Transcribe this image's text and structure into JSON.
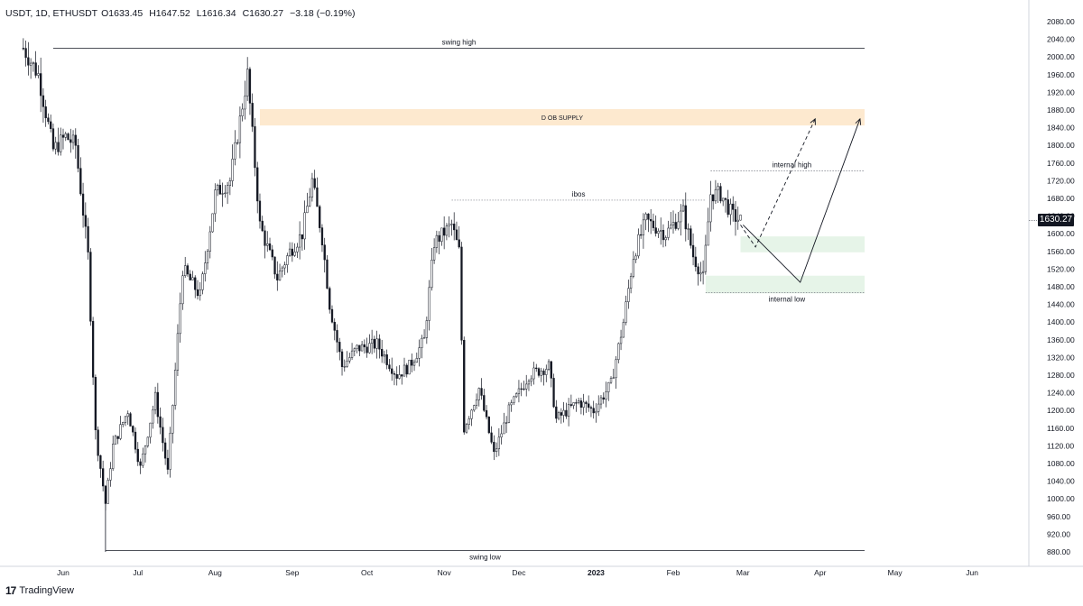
{
  "header": {
    "symbol": "USDT, 1D, ETHUSDT",
    "open": "O1633.45",
    "high": "H1647.52",
    "low": "L1616.34",
    "close": "C1630.27",
    "change": "−3.18 (−0.19%)"
  },
  "branding": {
    "name": "TradingView",
    "mark": "17"
  },
  "current_price": "1630.27",
  "colors": {
    "candle": "#131722",
    "supply_zone": "#fde9cf",
    "demand_zone": "#e6f4e8",
    "price_badge": "#131722",
    "grid_axis": "#d1d4dc"
  },
  "chart_data": {
    "type": "candlestick",
    "ylim": [
      860,
      2100
    ],
    "y_ticks": [
      "880.00",
      "920.00",
      "960.00",
      "1000.00",
      "1040.00",
      "1080.00",
      "1120.00",
      "1160.00",
      "1200.00",
      "1240.00",
      "1280.00",
      "1320.00",
      "1360.00",
      "1400.00",
      "1440.00",
      "1480.00",
      "1520.00",
      "1560.00",
      "1600.00",
      "1640.00",
      "1680.00",
      "1720.00",
      "1760.00",
      "1800.00",
      "1840.00",
      "1880.00",
      "1920.00",
      "1960.00",
      "2000.00",
      "2040.00",
      "2080.00"
    ],
    "x_ticks": [
      "Jun",
      "Jul",
      "Aug",
      "Sep",
      "Oct",
      "Nov",
      "Dec",
      "2023",
      "Feb",
      "Mar",
      "Apr",
      "May",
      "Jun"
    ],
    "price_path": [
      [
        "2022-05-16",
        2020
      ],
      [
        "2022-05-22",
        1960
      ],
      [
        "2022-05-28",
        1790
      ],
      [
        "2022-06-02",
        1820
      ],
      [
        "2022-06-06",
        1800
      ],
      [
        "2022-06-11",
        1550
      ],
      [
        "2022-06-14",
        1150
      ],
      [
        "2022-06-18",
        990
      ],
      [
        "2022-06-21",
        1120
      ],
      [
        "2022-06-27",
        1200
      ],
      [
        "2022-07-02",
        1070
      ],
      [
        "2022-07-08",
        1230
      ],
      [
        "2022-07-13",
        1060
      ],
      [
        "2022-07-19",
        1520
      ],
      [
        "2022-07-26",
        1460
      ],
      [
        "2022-08-01",
        1690
      ],
      [
        "2022-08-07",
        1720
      ],
      [
        "2022-08-14",
        1960
      ],
      [
        "2022-08-19",
        1620
      ],
      [
        "2022-08-26",
        1500
      ],
      [
        "2022-08-31",
        1560
      ],
      [
        "2022-09-05",
        1600
      ],
      [
        "2022-09-09",
        1720
      ],
      [
        "2022-09-13",
        1590
      ],
      [
        "2022-09-16",
        1440
      ],
      [
        "2022-09-21",
        1300
      ],
      [
        "2022-09-27",
        1340
      ],
      [
        "2022-10-05",
        1350
      ],
      [
        "2022-10-13",
        1280
      ],
      [
        "2022-10-18",
        1300
      ],
      [
        "2022-10-24",
        1360
      ],
      [
        "2022-10-28",
        1580
      ],
      [
        "2022-11-04",
        1620
      ],
      [
        "2022-11-07",
        1560
      ],
      [
        "2022-11-09",
        1160
      ],
      [
        "2022-11-15",
        1250
      ],
      [
        "2022-11-21",
        1100
      ],
      [
        "2022-11-27",
        1200
      ],
      [
        "2022-12-05",
        1280
      ],
      [
        "2022-12-13",
        1300
      ],
      [
        "2022-12-16",
        1180
      ],
      [
        "2022-12-25",
        1220
      ],
      [
        "2022-12-31",
        1200
      ],
      [
        "2023-01-07",
        1260
      ],
      [
        "2023-01-12",
        1400
      ],
      [
        "2023-01-16",
        1550
      ],
      [
        "2023-01-21",
        1630
      ],
      [
        "2023-01-29",
        1600
      ],
      [
        "2023-02-05",
        1650
      ],
      [
        "2023-02-09",
        1550
      ],
      [
        "2023-02-13",
        1500
      ],
      [
        "2023-02-16",
        1690
      ],
      [
        "2023-02-20",
        1690
      ],
      [
        "2023-02-25",
        1640
      ],
      [
        "2023-02-28",
        1630
      ]
    ],
    "swing_low_wick": [
      "2022-06-18",
      880
    ],
    "levels": [
      {
        "label": "swing high",
        "price": 2020
      },
      {
        "label": "ibos",
        "price": 1676
      },
      {
        "label": "internal high",
        "price": 1742
      },
      {
        "label": "internal low",
        "price": 1467
      },
      {
        "label": "swing low",
        "price": 883
      }
    ],
    "zones": [
      {
        "label": "D OB SUPPLY",
        "low": 1845,
        "high": 1882,
        "kind": "supply"
      },
      {
        "label": "",
        "low": 1558,
        "high": 1594,
        "kind": "demand"
      },
      {
        "label": "",
        "low": 1465,
        "high": 1505,
        "kind": "demand"
      }
    ],
    "projections": [
      {
        "style": "dashed",
        "points": [
          [
            "2023-02-28",
            1620
          ],
          [
            "2023-03-06",
            1570
          ],
          [
            "2023-03-30",
            1860
          ]
        ]
      },
      {
        "style": "solid",
        "points": [
          [
            "2023-03-01",
            1620
          ],
          [
            "2023-03-24",
            1490
          ],
          [
            "2023-04-17",
            1860
          ]
        ]
      }
    ]
  }
}
